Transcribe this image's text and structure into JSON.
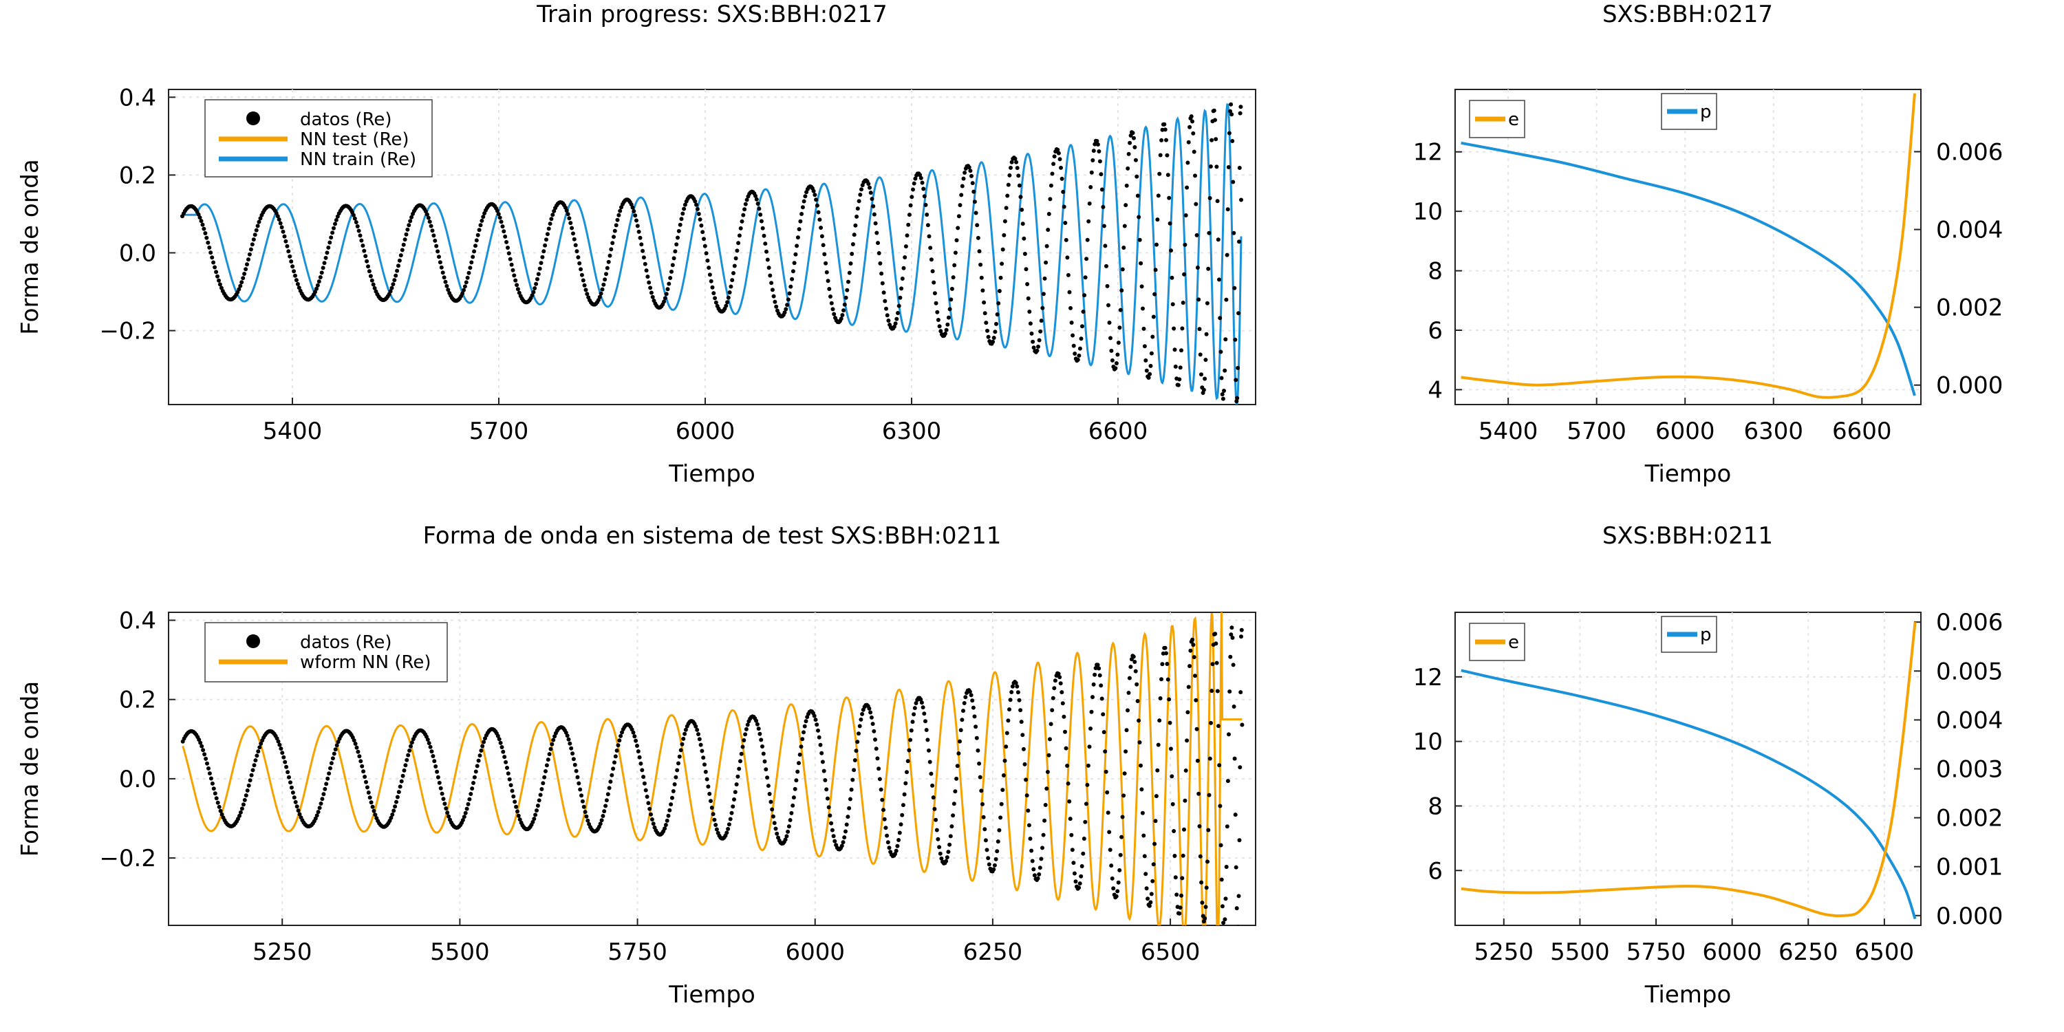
{
  "chart_data": [
    {
      "type": "line",
      "title": "Train progress: SXS:BBH:0217",
      "xlabel": "Tiempo",
      "ylabel": "Forma de onda",
      "xlim": [
        5220,
        6800
      ],
      "ylim": [
        -0.39,
        0.42
      ],
      "xticks": [
        5400,
        5700,
        6000,
        6300,
        6600
      ],
      "xtick_labels": [
        "5400",
        "5700",
        "6000",
        "6300",
        "6600"
      ],
      "yticks": [
        -0.2,
        0.0,
        0.2,
        0.4
      ],
      "ytick_labels": [
        "−0.2",
        "0.0",
        "0.2",
        "0.4"
      ],
      "grid": true,
      "legend_position": "top-left",
      "waveform": {
        "t0": 5240,
        "t1": 6779,
        "A0": 0.12,
        "A1": 0.39,
        "nCycles": 21.3,
        "phase": 0.9
      },
      "series": [
        {
          "name": "datos (Re)",
          "style": "points",
          "color": "#000000",
          "dt": 0,
          "ampScale": 1.0
        },
        {
          "name": "NN test (Re)",
          "style": "line",
          "color": "#f5a300",
          "legend_only": true
        },
        {
          "name": "NN train (Re)",
          "style": "line",
          "color": "#1a92d9",
          "dt": 20,
          "ampScale": 1.04
        }
      ]
    },
    {
      "type": "line",
      "title": "SXS:BBH:0217",
      "xlabel": "Tiempo",
      "xlim": [
        5220,
        6800
      ],
      "ylim": [
        3.5,
        14.1
      ],
      "ylim_right": [
        -0.0005,
        0.0076
      ],
      "xticks": [
        5400,
        5700,
        6000,
        6300,
        6600
      ],
      "xtick_labels": [
        "5400",
        "5700",
        "6000",
        "6300",
        "6600"
      ],
      "yticks": [
        4,
        6,
        8,
        10,
        12
      ],
      "ytick_labels": [
        "4",
        "6",
        "8",
        "10",
        "12"
      ],
      "yticks_right": [
        0.0,
        0.002,
        0.004,
        0.006
      ],
      "ytick_labels_right": [
        "0.000",
        "0.002",
        "0.004",
        "0.006"
      ],
      "grid": true,
      "series": [
        {
          "name": "p",
          "axis": "left",
          "color": "#1a92d9",
          "x": [
            5240,
            5400,
            5600,
            5800,
            6000,
            6200,
            6400,
            6550,
            6650,
            6720,
            6779
          ],
          "y": [
            12.3,
            12.0,
            11.6,
            11.1,
            10.6,
            9.9,
            8.9,
            7.9,
            6.8,
            5.6,
            3.8
          ]
        },
        {
          "name": "e",
          "axis": "right",
          "color": "#f5a300",
          "x": [
            5240,
            5350,
            5500,
            5700,
            5900,
            6050,
            6200,
            6350,
            6450,
            6520,
            6580,
            6620,
            6660,
            6700,
            6740,
            6779
          ],
          "y": [
            0.0002,
            0.0001,
            0.0,
            0.0001,
            0.0002,
            0.0002,
            0.0001,
            -0.0001,
            -0.0003,
            -0.0003,
            -0.0002,
            0.0001,
            0.0008,
            0.002,
            0.004,
            0.0075
          ]
        }
      ]
    },
    {
      "type": "line",
      "title": "Forma de onda en sistema de test SXS:BBH:0211",
      "xlabel": "Tiempo",
      "ylabel": "Forma de onda",
      "xlim": [
        5090,
        6620
      ],
      "ylim": [
        -0.37,
        0.42
      ],
      "xticks": [
        5250,
        5500,
        5750,
        6000,
        6250,
        6500
      ],
      "xtick_labels": [
        "5250",
        "5500",
        "5750",
        "6000",
        "6250",
        "6500"
      ],
      "yticks": [
        -0.2,
        0.0,
        0.2,
        0.4
      ],
      "ytick_labels": [
        "−0.2",
        "0.0",
        "0.2",
        "0.4"
      ],
      "grid": true,
      "legend_position": "top-left",
      "waveform": {
        "t0": 5110,
        "t1": 6601,
        "A0": 0.12,
        "A1": 0.39,
        "nCycles": 21.3,
        "phase": 0.9
      },
      "series": [
        {
          "name": "datos (Re)",
          "style": "points",
          "color": "#000000",
          "dt": 0,
          "ampScale": 1.0
        },
        {
          "name": "wform NN (Re)",
          "style": "line",
          "color": "#f5a300",
          "dt": -28,
          "ampScale": 1.1
        }
      ]
    },
    {
      "type": "line",
      "title": "SXS:BBH:0211",
      "xlabel": "Tiempo",
      "xlim": [
        5090,
        6620
      ],
      "ylim": [
        4.3,
        14.0
      ],
      "ylim_right": [
        -0.0002,
        0.0062
      ],
      "xticks": [
        5250,
        5500,
        5750,
        6000,
        6250,
        6500
      ],
      "xtick_labels": [
        "5250",
        "5500",
        "5750",
        "6000",
        "6250",
        "6500"
      ],
      "yticks": [
        6,
        8,
        10,
        12
      ],
      "ytick_labels": [
        "6",
        "8",
        "10",
        "12"
      ],
      "yticks_right": [
        0.0,
        0.001,
        0.002,
        0.003,
        0.004,
        0.005,
        0.006
      ],
      "ytick_labels_right": [
        "0.000",
        "0.001",
        "0.002",
        "0.003",
        "0.004",
        "0.005",
        "0.006"
      ],
      "grid": true,
      "series": [
        {
          "name": "p",
          "axis": "left",
          "color": "#1a92d9",
          "x": [
            5110,
            5250,
            5500,
            5750,
            6000,
            6200,
            6350,
            6450,
            6520,
            6570,
            6601
          ],
          "y": [
            12.2,
            11.9,
            11.4,
            10.8,
            10.0,
            9.1,
            8.2,
            7.3,
            6.3,
            5.4,
            4.5
          ]
        },
        {
          "name": "e",
          "axis": "right",
          "color": "#f5a300",
          "x": [
            5110,
            5200,
            5300,
            5450,
            5600,
            5750,
            5850,
            5950,
            6100,
            6200,
            6300,
            6370,
            6420,
            6470,
            6520,
            6560,
            6601
          ],
          "y": [
            0.00055,
            0.00049,
            0.00047,
            0.00048,
            0.00053,
            0.00058,
            0.0006,
            0.00057,
            0.00041,
            0.00023,
            3e-05,
            0.0,
            0.0001,
            0.0006,
            0.0018,
            0.0036,
            0.006
          ]
        }
      ]
    }
  ]
}
